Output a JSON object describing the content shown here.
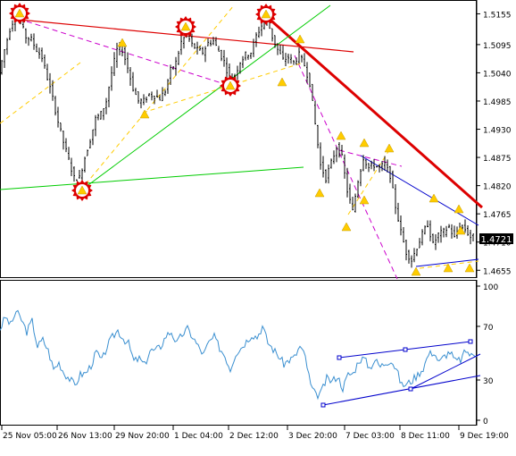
{
  "chart_data": [
    {
      "type": "candlestick",
      "symbol_current_price": "1.4721",
      "y_axis_ticks": [
        "1.5155",
        "1.5095",
        "1.5040",
        "1.4985",
        "1.4930",
        "1.4875",
        "1.4820",
        "1.4765",
        "1.4710",
        "1.4655"
      ],
      "ylim": [
        1.4645,
        1.5175
      ],
      "x_axis_ticks": [
        "25 Nov 05:00",
        "26 Nov 13:00",
        "29 Nov 20:00",
        "1 Dec 04:00",
        "2 Dec 12:00",
        "3 Dec 20:00",
        "7 Dec 03:00",
        "8 Dec 11:00",
        "9 Dec 19:00"
      ],
      "price_path": [
        [
          0,
          1.504
        ],
        [
          6,
          1.5085
        ],
        [
          12,
          1.5125
        ],
        [
          18,
          1.5152
        ],
        [
          24,
          1.5138
        ],
        [
          30,
          1.511
        ],
        [
          36,
          1.5105
        ],
        [
          42,
          1.5085
        ],
        [
          48,
          1.507
        ],
        [
          54,
          1.503
        ],
        [
          60,
          1.499
        ],
        [
          66,
          1.4945
        ],
        [
          72,
          1.4905
        ],
        [
          78,
          1.487
        ],
        [
          84,
          1.4835
        ],
        [
          90,
          1.4835
        ],
        [
          96,
          1.4875
        ],
        [
          102,
          1.491
        ],
        [
          108,
          1.495
        ],
        [
          114,
          1.496
        ],
        [
          120,
          1.4985
        ],
        [
          126,
          1.504
        ],
        [
          132,
          1.5085
        ],
        [
          138,
          1.5085
        ],
        [
          144,
          1.505
        ],
        [
          150,
          1.501
        ],
        [
          156,
          1.4985
        ],
        [
          162,
          1.4985
        ],
        [
          168,
          1.4998
        ],
        [
          174,
          1.4995
        ],
        [
          180,
          1.499
        ],
        [
          186,
          1.5005
        ],
        [
          192,
          1.5045
        ],
        [
          198,
          1.506
        ],
        [
          204,
          1.51
        ],
        [
          210,
          1.5115
        ],
        [
          216,
          1.5095
        ],
        [
          222,
          1.5085
        ],
        [
          228,
          1.508
        ],
        [
          234,
          1.5098
        ],
        [
          240,
          1.5102
        ],
        [
          246,
          1.5082
        ],
        [
          252,
          1.5062
        ],
        [
          258,
          1.503
        ],
        [
          264,
          1.5035
        ],
        [
          270,
          1.5062
        ],
        [
          276,
          1.5075
        ],
        [
          282,
          1.508
        ],
        [
          288,
          1.5112
        ],
        [
          294,
          1.5132
        ],
        [
          300,
          1.5145
        ],
        [
          306,
          1.511
        ],
        [
          312,
          1.5085
        ],
        [
          318,
          1.5065
        ],
        [
          324,
          1.507
        ],
        [
          330,
          1.506
        ],
        [
          336,
          1.5075
        ],
        [
          342,
          1.5055
        ],
        [
          348,
          1.502
        ],
        [
          354,
          1.494
        ],
        [
          360,
          1.486
        ],
        [
          366,
          1.4835
        ],
        [
          372,
          1.4865
        ],
        [
          378,
          1.4895
        ],
        [
          384,
          1.4875
        ],
        [
          390,
          1.481
        ],
        [
          396,
          1.477
        ],
        [
          402,
          1.483
        ],
        [
          408,
          1.4875
        ],
        [
          414,
          1.4855
        ],
        [
          420,
          1.486
        ],
        [
          426,
          1.4855
        ],
        [
          432,
          1.4862
        ],
        [
          438,
          1.484
        ],
        [
          444,
          1.478
        ],
        [
          450,
          1.473
        ],
        [
          456,
          1.469
        ],
        [
          462,
          1.4675
        ],
        [
          468,
          1.47
        ],
        [
          474,
          1.4725
        ],
        [
          480,
          1.4745
        ],
        [
          486,
          1.4705
        ],
        [
          492,
          1.4725
        ],
        [
          498,
          1.473
        ],
        [
          504,
          1.474
        ],
        [
          510,
          1.4718
        ],
        [
          516,
          1.474
        ],
        [
          522,
          1.4735
        ],
        [
          528,
          1.472
        ],
        [
          534,
          1.4721
        ]
      ]
    },
    {
      "type": "line",
      "ylim": [
        0,
        100
      ],
      "y_axis_ticks": [
        "100",
        "70",
        "30",
        "0"
      ],
      "series_path": [
        [
          0,
          68
        ],
        [
          6,
          77
        ],
        [
          12,
          71
        ],
        [
          18,
          81
        ],
        [
          24,
          75
        ],
        [
          30,
          66
        ],
        [
          36,
          74
        ],
        [
          42,
          55
        ],
        [
          48,
          60
        ],
        [
          54,
          52
        ],
        [
          60,
          38
        ],
        [
          66,
          43
        ],
        [
          72,
          35
        ],
        [
          78,
          31
        ],
        [
          84,
          26
        ],
        [
          90,
          34
        ],
        [
          96,
          35
        ],
        [
          102,
          41
        ],
        [
          108,
          51
        ],
        [
          114,
          44
        ],
        [
          120,
          55
        ],
        [
          126,
          62
        ],
        [
          132,
          67
        ],
        [
          138,
          61
        ],
        [
          144,
          57
        ],
        [
          150,
          44
        ],
        [
          156,
          46
        ],
        [
          162,
          41
        ],
        [
          168,
          52
        ],
        [
          174,
          52
        ],
        [
          180,
          55
        ],
        [
          186,
          63
        ],
        [
          192,
          66
        ],
        [
          198,
          57
        ],
        [
          204,
          64
        ],
        [
          210,
          68
        ],
        [
          216,
          62
        ],
        [
          222,
          55
        ],
        [
          228,
          49
        ],
        [
          234,
          58
        ],
        [
          240,
          62
        ],
        [
          246,
          54
        ],
        [
          252,
          48
        ],
        [
          258,
          38
        ],
        [
          264,
          50
        ],
        [
          270,
          54
        ],
        [
          276,
          59
        ],
        [
          282,
          64
        ],
        [
          288,
          62
        ],
        [
          294,
          70
        ],
        [
          300,
          58
        ],
        [
          306,
          53
        ],
        [
          312,
          48
        ],
        [
          318,
          42
        ],
        [
          324,
          45
        ],
        [
          330,
          47
        ],
        [
          336,
          55
        ],
        [
          342,
          47
        ],
        [
          348,
          26
        ],
        [
          354,
          18
        ],
        [
          360,
          21
        ],
        [
          366,
          31
        ],
        [
          372,
          29
        ],
        [
          378,
          33
        ],
        [
          384,
          24
        ],
        [
          390,
          34
        ],
        [
          396,
          35
        ],
        [
          402,
          45
        ],
        [
          408,
          46
        ],
        [
          414,
          39
        ],
        [
          420,
          45
        ],
        [
          426,
          40
        ],
        [
          432,
          43
        ],
        [
          438,
          45
        ],
        [
          444,
          38
        ],
        [
          450,
          26
        ],
        [
          456,
          27
        ],
        [
          462,
          30
        ],
        [
          468,
          34
        ],
        [
          474,
          39
        ],
        [
          480,
          49
        ],
        [
          486,
          51
        ],
        [
          492,
          43
        ],
        [
          498,
          48
        ],
        [
          504,
          51
        ],
        [
          510,
          44
        ],
        [
          516,
          45
        ],
        [
          522,
          52
        ],
        [
          528,
          48
        ],
        [
          534,
          50
        ]
      ]
    }
  ],
  "colors": {
    "candle": "#000000",
    "resistance_trendline": "#dd0000",
    "downtrend_line": "#dd0000",
    "support_line": "#00cc00",
    "fan_line": "#00cc00",
    "dashed_fib": "#cc00cc",
    "golden_dashed": "#ffcc00",
    "channel_line": "#0000cc",
    "oscillator_line": "#3a8fd0",
    "marker_ring": "#dd0000",
    "marker_fill": "#ffcc00",
    "price_label_bg": "#000000",
    "price_label_text": "#ffffff"
  },
  "icons": {
    "price_marker": "starburst-triangle-icon",
    "alert_marker": "yellow-triangle-icon"
  }
}
